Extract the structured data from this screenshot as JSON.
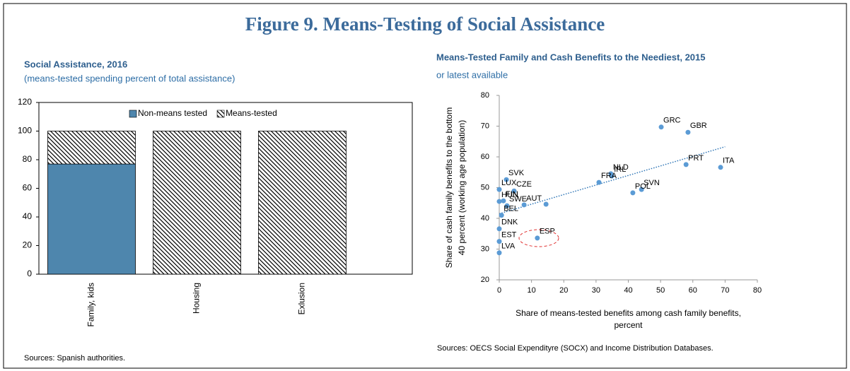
{
  "title": "Figure 9. Means-Testing of Social Assistance",
  "chart_data": [
    {
      "type": "bar",
      "stacked": true,
      "title": "Social Assistance, 2016",
      "subtitle": "(means-tested spending percent of total assistance)",
      "source": "Sources: Spanish authorities.",
      "categories": [
        "Family, kids",
        "Housing",
        "Exlusion"
      ],
      "series": [
        {
          "name": "Non-means tested",
          "color": "#4e86ad",
          "values": [
            77,
            0,
            0
          ]
        },
        {
          "name": "Means-tested",
          "color": "#000000",
          "pattern": "hatch",
          "values": [
            23,
            100,
            100
          ]
        }
      ],
      "ylim": [
        0,
        120
      ],
      "yticks": [
        0,
        20,
        40,
        60,
        80,
        100,
        120
      ],
      "legend": "top",
      "grid": false
    },
    {
      "type": "scatter",
      "title": "Means-Tested Family and Cash Benefits to the Neediest, 2015",
      "subtitle": "or latest available",
      "source": "Sources: OECS Social Expendityre (SOCX) and Income Distribution Databases.",
      "xlabel": [
        "Share of means-tested benefits among cash family benefits,",
        "percent"
      ],
      "ylabel": [
        "Share of cash family benefits to the bottom",
        "40 percent (working age population)"
      ],
      "series": [
        {
          "color": "#5b9bd5",
          "x": [
            50.2,
            58.5,
            57.9,
            68.6,
            34.6,
            34.9,
            30.9,
            44.1,
            41.4,
            2.2,
            0,
            4.6,
            1.3,
            0,
            2.4,
            7.7,
            14.5,
            0.7,
            0,
            11.8,
            0,
            0
          ],
          "values": [
            69.7,
            68.0,
            57.5,
            56.6,
            54.5,
            53.8,
            51.7,
            49.4,
            48.3,
            52.6,
            49.4,
            48.9,
            45.7,
            45.5,
            44.1,
            44.4,
            44.6,
            41.0,
            36.6,
            33.6,
            32.5,
            28.8
          ],
          "labels": [
            "GRC",
            "GBR",
            "PRT",
            "ITA",
            "NLD",
            "IRL",
            "FRA",
            "SVN",
            "POL",
            "SVK",
            "LUX",
            "CZE",
            "FIN",
            "HUN",
            "SWE",
            "AUT",
            null,
            "BEL",
            "DNK",
            "ESP",
            "EST",
            "LVA"
          ]
        }
      ],
      "trend": {
        "color": "#2e75b6",
        "style": "dotted",
        "x": [
          0,
          70
        ],
        "values": [
          41.5,
          63.3
        ]
      },
      "xlim": [
        0,
        80
      ],
      "xticks": [
        0,
        10,
        20,
        30,
        40,
        50,
        60,
        70,
        80
      ],
      "ylim": [
        20,
        80
      ],
      "yticks": [
        20,
        30,
        40,
        50,
        60,
        70,
        80
      ],
      "grid": false
    }
  ]
}
